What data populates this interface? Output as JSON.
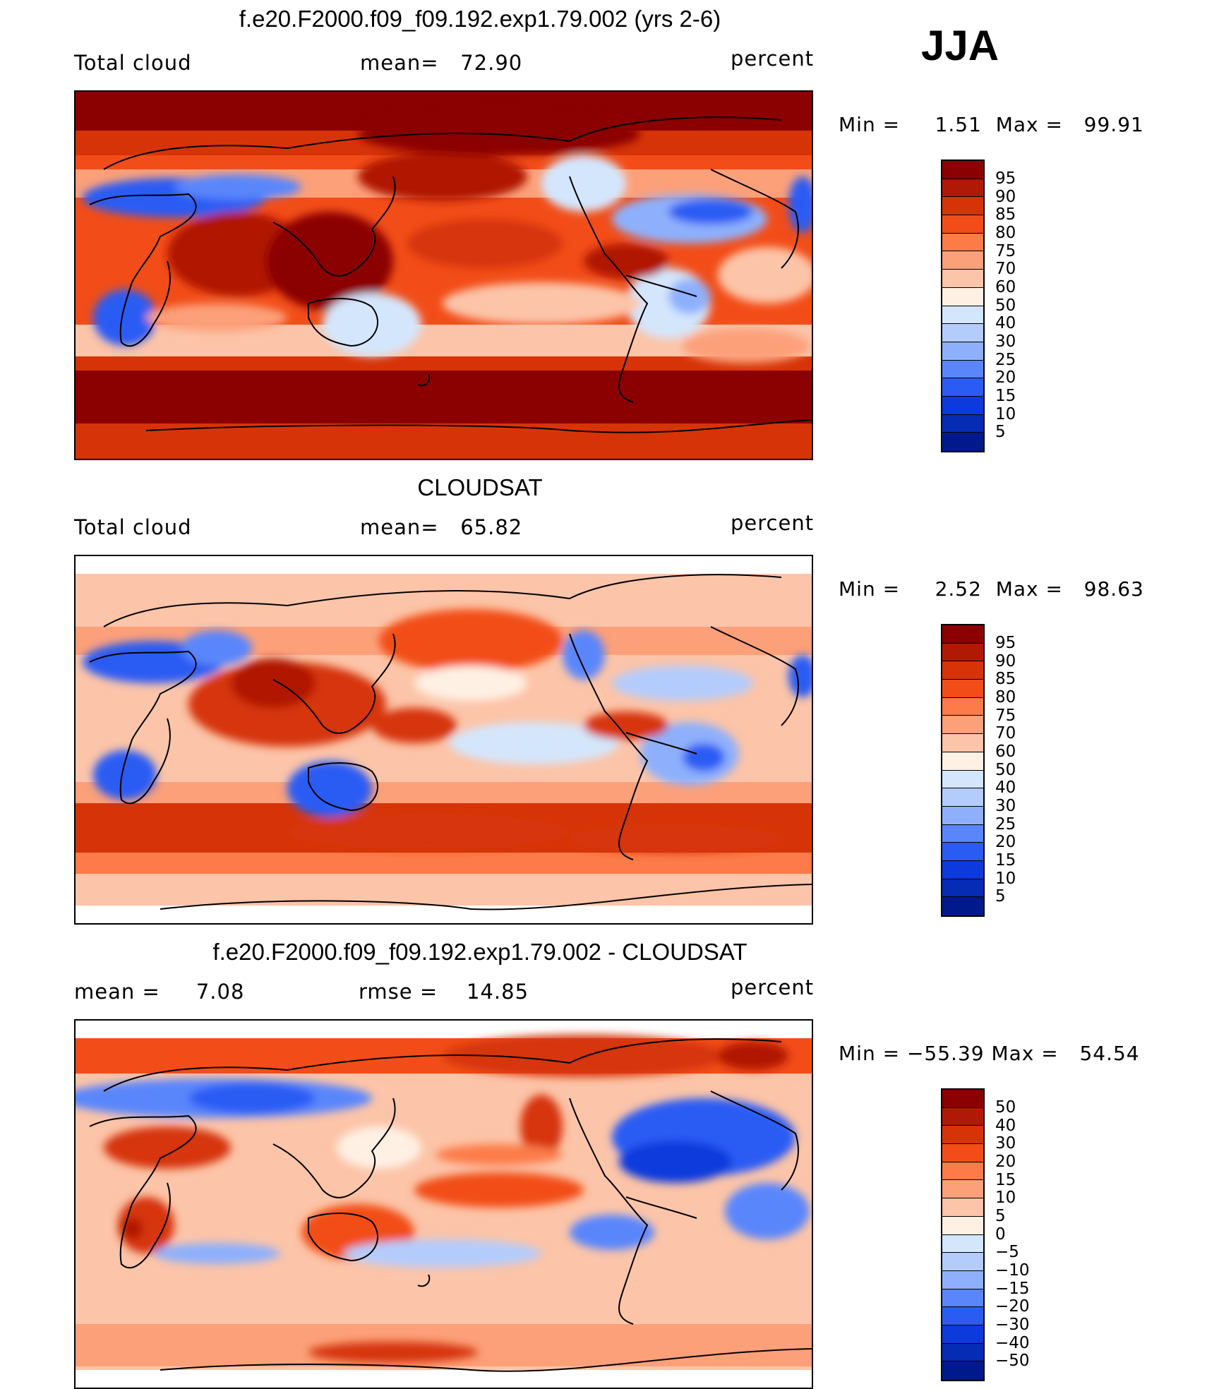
{
  "season": "JJA",
  "panels": [
    {
      "title": "f.e20.F2000.f09_f09.192.exp1.79.002 (yrs 2-6)",
      "left_label": "Total cloud",
      "stat1": "mean=   72.90",
      "units": "percent",
      "min_label": "Min =",
      "min": "1.51",
      "max_label": "Max =",
      "max": "99.91",
      "levels": [
        "95",
        "90",
        "85",
        "80",
        "75",
        "70",
        "60",
        "50",
        "40",
        "30",
        "25",
        "20",
        "15",
        "10",
        "5"
      ]
    },
    {
      "title": "CLOUDSAT",
      "left_label": "Total cloud",
      "stat1": "mean=   65.82",
      "units": "percent",
      "min_label": "Min =",
      "min": "2.52",
      "max_label": "Max =",
      "max": "98.63",
      "levels": [
        "95",
        "90",
        "85",
        "80",
        "75",
        "70",
        "60",
        "50",
        "40",
        "30",
        "25",
        "20",
        "15",
        "10",
        "5"
      ]
    },
    {
      "title": "f.e20.F2000.f09_f09.192.exp1.79.002 - CLOUDSAT",
      "left_label": "mean =     7.08",
      "stat1": "rmse =    14.85",
      "units": "percent",
      "min_label": "Min =",
      "min": "−55.39",
      "max_label": "Max =",
      "max": "54.54",
      "levels": [
        "50",
        "40",
        "30",
        "20",
        "15",
        "10",
        "5",
        "0",
        "−5",
        "−10",
        "−15",
        "−20",
        "−30",
        "−40",
        "−50"
      ]
    }
  ],
  "colors": {
    "scale": [
      "#8b0000",
      "#b01905",
      "#d63408",
      "#f24d18",
      "#fc7b48",
      "#fca07a",
      "#fcc4a8",
      "#fff0e4",
      "#d4e6fc",
      "#b4ccfc",
      "#8eb0fc",
      "#5a86fc",
      "#2a5cf4",
      "#0c3adc",
      "#062bb4",
      "#001a8c"
    ],
    "land_outline": "#000000"
  }
}
